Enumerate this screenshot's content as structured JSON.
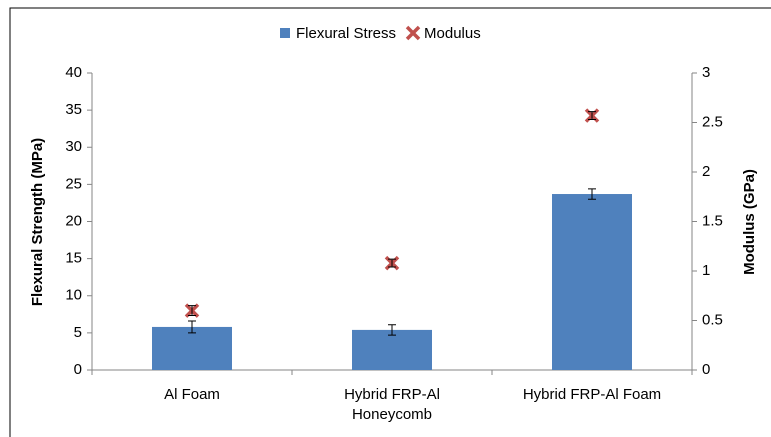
{
  "chart_data": {
    "type": "bar",
    "categories": [
      "Al Foam",
      "Hybrid FRP-Al Honeycomb",
      "Hybrid FRP-Al Foam"
    ],
    "ylabel": "Flexural Strength (MPa)",
    "y2label": "Modulus (GPa)",
    "ylim": [
      0,
      40
    ],
    "yticks": [
      0,
      5,
      10,
      15,
      20,
      25,
      30,
      35,
      40
    ],
    "y2lim": [
      0,
      3
    ],
    "y2ticks": [
      0,
      0.5,
      1,
      1.5,
      2,
      2.5,
      3
    ],
    "series": [
      {
        "name": "Flexural Stress",
        "type": "bar",
        "color": "#4f81bd",
        "values": [
          5.8,
          5.4,
          23.7
        ],
        "errors": [
          0.8,
          0.7,
          0.7
        ]
      },
      {
        "name": "Modulus",
        "type": "scatter",
        "axis": "y2",
        "color": "#c0504d",
        "values": [
          0.6,
          1.08,
          2.57
        ],
        "errors": [
          0.05,
          0.04,
          0.04
        ]
      }
    ],
    "legend": "top"
  }
}
